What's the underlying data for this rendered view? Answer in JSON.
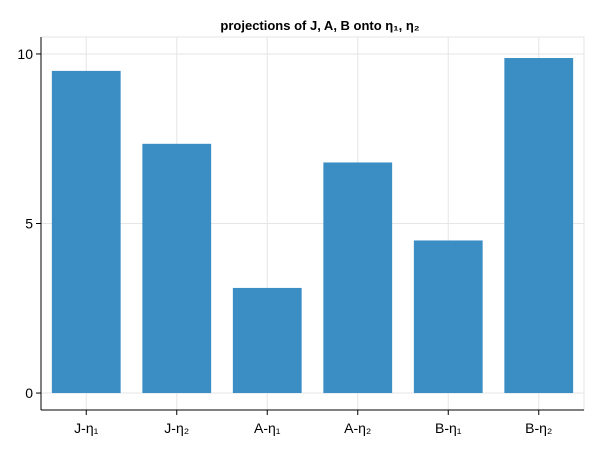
{
  "chart_data": {
    "type": "bar",
    "title": "projections of J, A, B onto η₁, η₂",
    "xlabel": "",
    "ylabel": "",
    "categories": [
      "J-η₁",
      "J-η₂",
      "A-η₁",
      "A-η₂",
      "B-η₁",
      "B-η₂"
    ],
    "values": [
      9.5,
      7.35,
      3.1,
      6.8,
      4.5,
      9.88
    ],
    "ylim": [
      -0.5,
      10.5
    ],
    "yticks": [
      0,
      5,
      10
    ],
    "ytick_labels": [
      "0",
      "5",
      "10"
    ],
    "grid": true,
    "legend": "none",
    "colors": {
      "bar": "#3a8ec4",
      "grid": "#e6e6e6",
      "axis": "#000000",
      "text": "#000000"
    }
  }
}
